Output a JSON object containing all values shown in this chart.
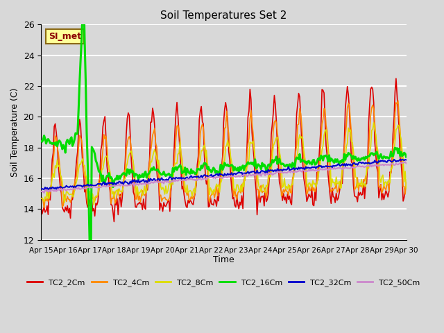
{
  "title": "Soil Temperatures Set 2",
  "xlabel": "Time",
  "ylabel": "Soil Temperature (C)",
  "ylim": [
    12,
    26
  ],
  "yticks": [
    12,
    14,
    16,
    18,
    20,
    22,
    24,
    26
  ],
  "bg_color": "#d8d8d8",
  "grid_color": "#ffffff",
  "annotation_text": "SI_met",
  "annotation_bg": "#ffff99",
  "annotation_border": "#8B6914",
  "annotation_text_color": "#8B0000",
  "series": {
    "TC2_2Cm": {
      "color": "#dd0000",
      "lw": 1.2
    },
    "TC2_4Cm": {
      "color": "#ff8800",
      "lw": 1.2
    },
    "TC2_8Cm": {
      "color": "#dddd00",
      "lw": 1.2
    },
    "TC2_16Cm": {
      "color": "#00dd00",
      "lw": 2.2
    },
    "TC2_32Cm": {
      "color": "#0000cc",
      "lw": 1.5
    },
    "TC2_50Cm": {
      "color": "#cc88cc",
      "lw": 1.5
    }
  },
  "x_tick_labels": [
    "Apr 15",
    "Apr 16",
    "Apr 17",
    "Apr 18",
    "Apr 19",
    "Apr 20",
    "Apr 21",
    "Apr 22",
    "Apr 23",
    "Apr 24",
    "Apr 25",
    "Apr 26",
    "Apr 27",
    "Apr 28",
    "Apr 29",
    "Apr 30"
  ],
  "x_tick_positions": [
    0,
    24,
    48,
    72,
    96,
    120,
    144,
    168,
    192,
    216,
    240,
    264,
    288,
    312,
    336,
    360
  ]
}
